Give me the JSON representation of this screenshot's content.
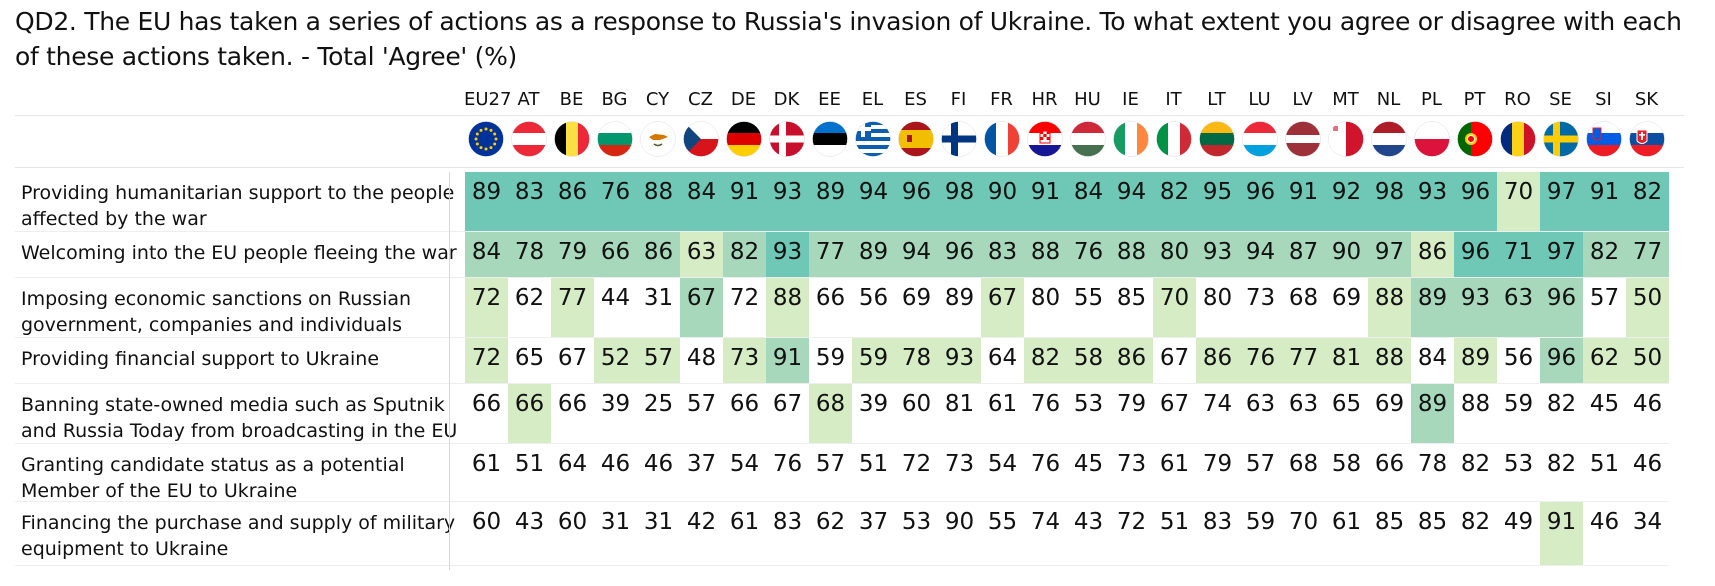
{
  "title": "QD2. The EU has taken a series of actions as a response to Russia's invasion of Ukraine. To what extent you agree or disagree with each of these actions taken. - Total 'Agree' (%)",
  "colors": {
    "level1": "#6ec8b5",
    "level2": "#a8d8bc",
    "level3": "#d6ecc5",
    "none": "#ffffff"
  },
  "chart_data": {
    "type": "table",
    "title": "QD2. The EU has taken a series of actions as a response to Russia's invasion of Ukraine. To what extent you agree or disagree with each of these actions taken. - Total 'Agree' (%)",
    "columns": [
      "EU27",
      "AT",
      "BE",
      "BG",
      "CY",
      "CZ",
      "DE",
      "DK",
      "EE",
      "EL",
      "ES",
      "FI",
      "FR",
      "HR",
      "HU",
      "IE",
      "IT",
      "LT",
      "LU",
      "LV",
      "MT",
      "NL",
      "PL",
      "PT",
      "RO",
      "SE",
      "SI",
      "SK"
    ],
    "rows": [
      {
        "label": "Providing humanitarian support to the people affected by the war",
        "values": [
          89,
          83,
          86,
          76,
          88,
          84,
          91,
          93,
          89,
          94,
          96,
          98,
          90,
          91,
          84,
          94,
          82,
          95,
          96,
          91,
          92,
          98,
          93,
          96,
          70,
          97,
          91,
          82
        ],
        "shade": [
          1,
          1,
          1,
          1,
          1,
          1,
          1,
          1,
          1,
          1,
          1,
          1,
          1,
          1,
          1,
          1,
          1,
          1,
          1,
          1,
          1,
          1,
          1,
          1,
          3,
          1,
          1,
          1
        ]
      },
      {
        "label": "Welcoming into the EU people fleeing the war",
        "values": [
          84,
          78,
          79,
          66,
          86,
          63,
          82,
          93,
          77,
          89,
          94,
          96,
          83,
          88,
          76,
          88,
          80,
          93,
          94,
          87,
          90,
          97,
          86,
          96,
          71,
          97,
          82,
          77
        ],
        "shade": [
          2,
          2,
          2,
          2,
          2,
          3,
          2,
          1,
          2,
          2,
          2,
          2,
          2,
          2,
          2,
          2,
          2,
          2,
          2,
          2,
          2,
          2,
          3,
          1,
          1,
          1,
          2,
          2
        ]
      },
      {
        "label": "Imposing economic sanctions on Russian government, companies and individuals",
        "values": [
          72,
          62,
          77,
          44,
          31,
          67,
          72,
          88,
          66,
          56,
          69,
          89,
          67,
          80,
          55,
          85,
          70,
          80,
          73,
          68,
          69,
          88,
          89,
          93,
          63,
          96,
          57,
          50
        ],
        "shade": [
          3,
          0,
          3,
          0,
          0,
          2,
          0,
          3,
          0,
          0,
          0,
          0,
          3,
          0,
          0,
          0,
          3,
          0,
          0,
          0,
          0,
          3,
          2,
          2,
          2,
          2,
          0,
          3
        ]
      },
      {
        "label": "Providing financial support to Ukraine",
        "values": [
          72,
          65,
          67,
          52,
          57,
          48,
          73,
          91,
          59,
          59,
          78,
          93,
          64,
          82,
          58,
          86,
          67,
          86,
          76,
          77,
          81,
          88,
          84,
          89,
          56,
          96,
          62,
          50
        ],
        "shade": [
          3,
          0,
          0,
          3,
          3,
          0,
          3,
          2,
          0,
          3,
          3,
          3,
          0,
          3,
          3,
          3,
          0,
          3,
          3,
          3,
          3,
          3,
          0,
          3,
          0,
          2,
          3,
          3
        ]
      },
      {
        "label": "Banning state-owned media such as Sputnik and Russia Today from broadcasting in the EU",
        "values": [
          66,
          66,
          66,
          39,
          25,
          57,
          66,
          67,
          68,
          39,
          60,
          81,
          61,
          76,
          53,
          79,
          67,
          74,
          63,
          63,
          65,
          69,
          89,
          88,
          59,
          82,
          45,
          46
        ],
        "shade": [
          0,
          3,
          0,
          0,
          0,
          0,
          0,
          0,
          3,
          0,
          0,
          0,
          0,
          0,
          0,
          0,
          0,
          0,
          0,
          0,
          0,
          0,
          2,
          0,
          0,
          0,
          0,
          0
        ]
      },
      {
        "label": "Granting candidate status as a potential Member of the EU to Ukraine",
        "values": [
          61,
          51,
          64,
          46,
          46,
          37,
          54,
          76,
          57,
          51,
          72,
          73,
          54,
          76,
          45,
          73,
          61,
          79,
          57,
          68,
          58,
          66,
          78,
          82,
          53,
          82,
          51,
          46
        ],
        "shade": [
          0,
          0,
          0,
          0,
          0,
          0,
          0,
          0,
          0,
          0,
          0,
          0,
          0,
          0,
          0,
          0,
          0,
          0,
          0,
          0,
          0,
          0,
          0,
          0,
          0,
          0,
          0,
          0
        ]
      },
      {
        "label": "Financing the purchase and supply of military equipment to Ukraine",
        "values": [
          60,
          43,
          60,
          31,
          31,
          42,
          61,
          83,
          62,
          37,
          53,
          90,
          55,
          74,
          43,
          72,
          51,
          83,
          59,
          70,
          61,
          85,
          85,
          82,
          49,
          91,
          46,
          34
        ],
        "shade": [
          0,
          0,
          0,
          0,
          0,
          0,
          0,
          0,
          0,
          0,
          0,
          0,
          0,
          0,
          0,
          0,
          0,
          0,
          0,
          0,
          0,
          0,
          0,
          0,
          0,
          3,
          0,
          0
        ]
      }
    ]
  }
}
